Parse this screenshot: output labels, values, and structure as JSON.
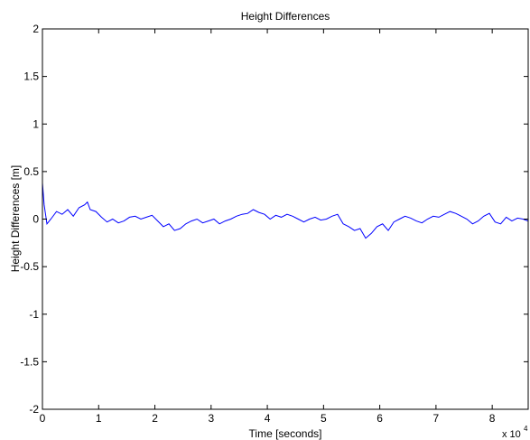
{
  "chart_data": {
    "type": "line",
    "title": "Height Differences",
    "xlabel": "Time [seconds]",
    "ylabel": "Height Differences [m]",
    "xlim": [
      0,
      86400
    ],
    "ylim": [
      -2,
      2
    ],
    "x_tick_labels": [
      "0",
      "1",
      "2",
      "3",
      "4",
      "5",
      "6",
      "7",
      "8"
    ],
    "x_tick_values": [
      0,
      10000,
      20000,
      30000,
      40000,
      50000,
      60000,
      70000,
      80000
    ],
    "x_exponent_base": "x 10",
    "x_exponent_power": "4",
    "y_tick_labels": [
      "-2",
      "-1.5",
      "-1",
      "-0.5",
      "0",
      "0.5",
      "1",
      "1.5",
      "2"
    ],
    "y_tick_values": [
      -2,
      -1.5,
      -1,
      -0.5,
      0,
      0.5,
      1,
      1.5,
      2
    ],
    "grid": false,
    "line_color": "#0000ff",
    "series": [
      {
        "x": [
          0,
          300,
          800,
          1500,
          2500,
          3500,
          4500,
          5500,
          6500,
          7500,
          8000,
          8500,
          9500,
          10500,
          11500,
          12500,
          13500,
          14500,
          15500,
          16500,
          17500,
          18500,
          19500,
          20500,
          21500,
          22500,
          23500,
          24500,
          25500,
          26500,
          27500,
          28500,
          29500,
          30500,
          31500,
          32500,
          33500,
          34500,
          35500,
          36500,
          37500,
          38500,
          39500,
          40500,
          41500,
          42500,
          43500,
          44500,
          45500,
          46500,
          47500,
          48500,
          49500,
          50500,
          51500,
          52500,
          53500,
          54500,
          55500,
          56500,
          57500,
          58500,
          59500,
          60500,
          61500,
          62500,
          63500,
          64500,
          65500,
          66500,
          67500,
          68500,
          69500,
          70500,
          71500,
          72500,
          73500,
          74500,
          75500,
          76500,
          77500,
          78500,
          79500,
          80500,
          81500,
          82500,
          83500,
          84500,
          85500,
          86400
        ],
        "y": [
          0.38,
          0.15,
          -0.05,
          0.0,
          0.08,
          0.05,
          0.1,
          0.03,
          0.12,
          0.15,
          0.18,
          0.1,
          0.08,
          0.02,
          -0.03,
          0.0,
          -0.04,
          -0.02,
          0.02,
          0.03,
          0.0,
          0.02,
          0.04,
          -0.02,
          -0.08,
          -0.05,
          -0.12,
          -0.1,
          -0.05,
          -0.02,
          0.0,
          -0.04,
          -0.02,
          0.0,
          -0.05,
          -0.02,
          0.0,
          0.03,
          0.05,
          0.06,
          0.1,
          0.07,
          0.05,
          0.0,
          0.04,
          0.02,
          0.05,
          0.03,
          0.0,
          -0.03,
          0.0,
          0.02,
          -0.01,
          0.0,
          0.03,
          0.05,
          -0.05,
          -0.08,
          -0.12,
          -0.1,
          -0.2,
          -0.15,
          -0.08,
          -0.05,
          -0.12,
          -0.03,
          0.0,
          0.03,
          0.01,
          -0.02,
          -0.04,
          0.0,
          0.03,
          0.02,
          0.05,
          0.08,
          0.06,
          0.03,
          0.0,
          -0.05,
          -0.02,
          0.03,
          0.06,
          -0.03,
          -0.05,
          0.02,
          -0.02,
          0.01,
          0.0,
          -0.02
        ]
      }
    ]
  }
}
